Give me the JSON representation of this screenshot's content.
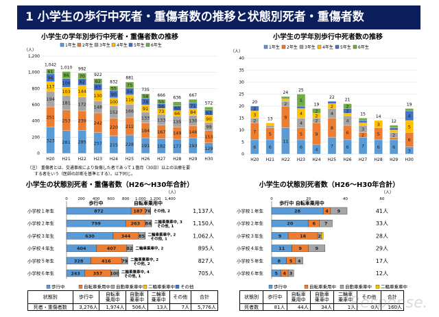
{
  "banner_title": "1  小学生の歩行中死者・重傷者数の推移と状態別死者・重傷者数",
  "colors": {
    "banner": "#0c1f5c",
    "g1": "#5b9bd5",
    "g2": "#ed7d31",
    "g3": "#a5a5a5",
    "g4": "#ffc000",
    "g5": "#4472c4",
    "g6": "#70ad47"
  },
  "note_lines": [
    "（注） 重傷者とは、交通事故により負傷した者であって１箇月（30日）以上の治療を要",
    "する者をいう（医師の診断を基準とする）。以下同じ。"
  ],
  "watermark": "Response.",
  "chart_data": [
    {
      "type": "bar",
      "stacked": true,
      "orientation": "vertical",
      "title": "小学生の学年別歩行中死者・重傷者数の推移",
      "unit": "（人）",
      "ylim": [
        0,
        1200
      ],
      "yticks": [
        "0",
        "200",
        "400",
        "600",
        "800",
        "1,000",
        "1,200"
      ],
      "grid": true,
      "legend": "top",
      "categories": [
        "H20",
        "H21",
        "H22",
        "H23",
        "H24",
        "H25",
        "H26",
        "H27",
        "H28",
        "H29",
        "H30"
      ],
      "series": [
        {
          "name": "1年生",
          "values": [
            323,
            281,
            285,
            257,
            215,
            228,
            191,
            182,
            177,
            193,
            129
          ]
        },
        {
          "name": "2年生",
          "values": [
            251,
            253,
            239,
            242,
            220,
            212,
            184,
            167,
            149,
            146,
            153
          ]
        },
        {
          "name": "3年生",
          "values": [
            194,
            181,
            172,
            148,
            152,
            166,
            133,
            133,
            135,
            130,
            99
          ]
        },
        {
          "name": "4年生",
          "values": [
            117,
            103,
            144,
            130,
            100,
            116,
            91,
            73,
            66,
            84,
            90
          ]
        },
        {
          "name": "5年生",
          "values": [
            96,
            106,
            82,
            83,
            90,
            84,
            78,
            56,
            60,
            71,
            63
          ]
        },
        {
          "name": "6年生",
          "values": [
            61,
            86,
            70,
            62,
            55,
            75,
            58,
            55,
            49,
            43,
            38
          ]
        }
      ],
      "totals": [
        "1,042",
        "1,010",
        "992",
        "922",
        "832",
        "881",
        "735",
        "666",
        "636",
        "667",
        "572"
      ]
    },
    {
      "type": "bar",
      "stacked": true,
      "orientation": "vertical",
      "title": "小学生の学年別歩行中死者数の推移",
      "unit": "（人）",
      "ylim": [
        0,
        40
      ],
      "yticks": [
        "0",
        "5",
        "10",
        "15",
        "20",
        "25",
        "30",
        "35",
        "40"
      ],
      "grid": true,
      "legend": "top",
      "categories": [
        "H20",
        "H21",
        "H22",
        "H23",
        "H24",
        "H25",
        "H26",
        "H27",
        "H28",
        "H29",
        "H30"
      ],
      "series": [
        {
          "name": "1年生",
          "values": [
            6,
            6,
            11,
            6,
            4,
            7,
            6,
            7,
            6,
            6,
            3
          ]
        },
        {
          "name": "2年生",
          "values": [
            7,
            5,
            9,
            5,
            9,
            8,
            6,
            2,
            5,
            1,
            6
          ]
        },
        {
          "name": "3年生",
          "values": [
            2,
            1,
            2,
            4,
            2,
            4,
            4,
            3,
            0,
            2,
            0
          ]
        },
        {
          "name": "4年生",
          "values": [
            3,
            1,
            1,
            4,
            2,
            2,
            1,
            1,
            3,
            1,
            5
          ]
        },
        {
          "name": "5年生",
          "values": [
            2,
            0,
            0,
            1,
            0,
            1,
            2,
            1,
            0,
            1,
            4
          ]
        },
        {
          "name": "6年生",
          "values": [
            0,
            0,
            1,
            5,
            2,
            0,
            2,
            1,
            0,
            1,
            1
          ]
        }
      ],
      "totals": [
        "20",
        "13",
        "24",
        "25",
        "19",
        "22",
        "21",
        "15",
        "14",
        "12",
        "19"
      ]
    },
    {
      "type": "bar",
      "stacked": true,
      "orientation": "horizontal",
      "title": "小学生の状態別死者・重傷者数（H26～H30年合計）",
      "unit": "（人）",
      "xlim": [
        0,
        1400
      ],
      "xticks": [
        "0",
        "200",
        "400",
        "600",
        "800",
        "1,000",
        "1,200",
        "1,400"
      ],
      "legend": "bottom",
      "header_labels": [
        "歩行中",
        "自転車乗用中"
      ],
      "categories": [
        "小学校１年生",
        "小学校２年生",
        "小学校３年生",
        "小学校４年生",
        "小学校５年生",
        "小学校６年生"
      ],
      "series": [
        {
          "name": "歩行中",
          "values": [
            872,
            799,
            630,
            404,
            328,
            243
          ]
        },
        {
          "name": "自転車乗用中",
          "values": [
            187,
            263,
            344,
            407,
            416,
            357
          ]
        },
        {
          "name": "自動車乗車中",
          "values": [
            76,
            84,
            85,
            82,
            79,
            100
          ]
        },
        {
          "name": "二輪車乗車中",
          "values": [
            0,
            3,
            2,
            2,
            2,
            4
          ]
        },
        {
          "name": "その他",
          "values": [
            2,
            1,
            1,
            0,
            2,
            1
          ]
        }
      ],
      "annotations": [
        [
          "その他, 2"
        ],
        [
          "二輪車乗車中, 3",
          "その他, 1"
        ],
        [
          "二輪車乗車中, 2",
          "その他, 1"
        ],
        [
          "二輪車乗車中, 2"
        ],
        [
          "二輪車乗車中, 2",
          "その他, 2"
        ],
        [
          "二輪車乗車中, 4",
          "その他, 1"
        ]
      ],
      "totals": [
        "1,137人",
        "1,150人",
        "1,062人",
        "895人",
        "827人",
        "705人"
      ]
    },
    {
      "type": "bar",
      "stacked": true,
      "orientation": "horizontal",
      "title": "小学生の状態別死者数（H26～H30年合計）",
      "unit": "（人）",
      "xlim": [
        0,
        60
      ],
      "xticks": [
        "0",
        "20",
        "40",
        "60"
      ],
      "legend": "bottom",
      "header_labels": [
        "歩行中  自転車乗用中"
      ],
      "categories": [
        "小学校１年生",
        "小学校２年生",
        "小学校３年生",
        "小学校４年生",
        "小学校５年生",
        "小学校６年生"
      ],
      "series": [
        {
          "name": "歩行中",
          "values": [
            28,
            20,
            9,
            11,
            8,
            5
          ]
        },
        {
          "name": "自転車乗用中",
          "values": [
            4,
            6,
            16,
            9,
            5,
            4
          ]
        },
        {
          "name": "自動車乗車中",
          "values": [
            9,
            7,
            2,
            9,
            4,
            3
          ]
        },
        {
          "name": "二輪車乗車中",
          "values": [
            0,
            0,
            1,
            0,
            0,
            0
          ]
        }
      ],
      "annotations": [],
      "totals": [
        "41人",
        "33人",
        "28人",
        "29人",
        "17人",
        "12人"
      ]
    }
  ],
  "tables": [
    {
      "headers": [
        "状態別",
        "歩行中",
        "自転車\n乗用中",
        "自動車\n乗車中",
        "二輪車\n乗車中",
        "その他",
        "合計"
      ],
      "row": [
        "死者・重傷者数",
        "3,276人",
        "1,974人",
        "506人",
        "13人",
        "7人",
        "5,776人"
      ]
    },
    {
      "headers": [
        "状態別",
        "歩行中",
        "自転車\n乗用中",
        "自動車\n乗車中",
        "二輪車\n乗車中",
        "その他",
        "合計"
      ],
      "row": [
        "死者数",
        "81人",
        "44人",
        "34人",
        "1人",
        "0人",
        "160人"
      ]
    }
  ]
}
